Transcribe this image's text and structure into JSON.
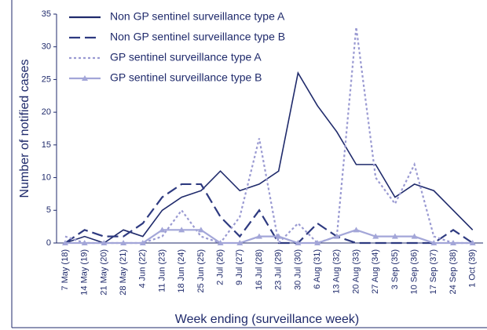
{
  "chart_data": {
    "type": "line",
    "x_label": "Week ending (surveillance week)",
    "y_label": "Number of notified cases",
    "categories": [
      "7 May (18)",
      "14 May (19)",
      "21 May (20)",
      "28 May (21)",
      "4 Jun (22)",
      "11 Jun (23)",
      "18 Jun (24)",
      "25 Jun (25)",
      "2 Jul (26)",
      "9 Jul (27)",
      "16 Jul (28)",
      "23 Jul (29)",
      "30 Jul (30)",
      "6 Aug (31)",
      "13 Aug (32)",
      "20 Aug (33)",
      "27 Aug (34)",
      "3 Sep (35)",
      "10 Sep (36)",
      "17 Sep (37)",
      "24 Sep (38)",
      "1 Oct (39)"
    ],
    "series": [
      {
        "name": "Non GP sentinel surveillance type A",
        "color": "#1f2a6b",
        "style": "solid",
        "values": [
          0,
          1,
          0,
          2,
          1,
          5,
          7,
          8,
          11,
          8,
          9,
          11,
          26,
          21,
          17,
          12,
          12,
          7,
          9,
          8,
          5,
          2
        ]
      },
      {
        "name": "Non GP sentinel surveillance type B",
        "color": "#2e3a80",
        "style": "dash",
        "values": [
          0,
          2,
          1,
          1,
          3,
          7,
          9,
          9,
          4,
          1,
          5,
          0,
          0,
          3,
          1,
          0,
          0,
          0,
          0,
          0,
          2,
          0
        ]
      },
      {
        "name": "GP sentinel surveillance type A",
        "color": "#9a9ad2",
        "style": "dot",
        "values": [
          1,
          0,
          0,
          0,
          0,
          1,
          5,
          1,
          0,
          4,
          16,
          0,
          3,
          0,
          1,
          33,
          10,
          6,
          12,
          1,
          0,
          0
        ]
      },
      {
        "name": "GP sentinel surveillance type B",
        "color": "#a3a6d8",
        "style": "solid",
        "marker": "triangle",
        "values": [
          0,
          0,
          0,
          0,
          0,
          2,
          2,
          2,
          0,
          0,
          1,
          1,
          0,
          0,
          1,
          2,
          1,
          1,
          1,
          0,
          0,
          0
        ]
      }
    ],
    "ylim": [
      0,
      35
    ],
    "yticks": [
      0,
      5,
      10,
      15,
      20,
      25,
      30,
      35
    ]
  }
}
